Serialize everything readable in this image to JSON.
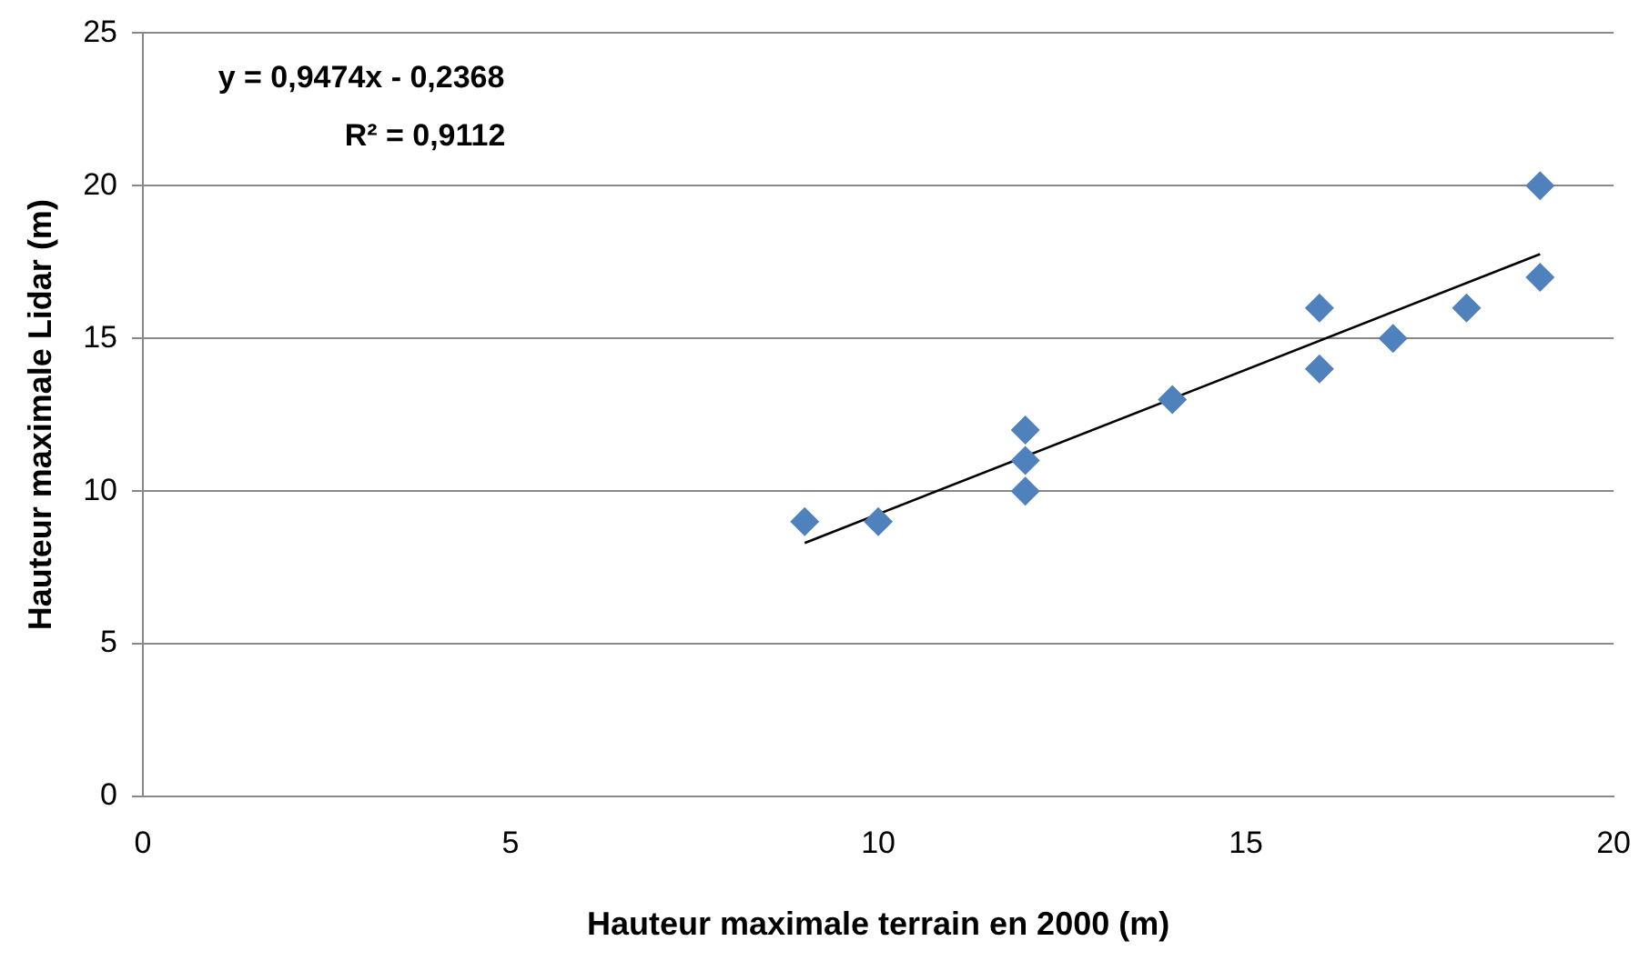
{
  "chart_data": {
    "type": "scatter",
    "xlabel": "Hauteur maximale terrain en 2000 (m)",
    "ylabel": "Hauteur maximale Lidar (m)",
    "xlim": [
      0,
      20
    ],
    "xticks": [
      0,
      5,
      10,
      15,
      20
    ],
    "ylim": [
      0,
      25
    ],
    "yticks": [
      0,
      5,
      10,
      15,
      20,
      25
    ],
    "grid": "y",
    "legend": false,
    "annotations": [
      "y = 0,9474x - 0,2368",
      "R² = 0,9112"
    ],
    "series": [
      {
        "type": "scatter",
        "color": "#4f81bd",
        "marker": "diamond",
        "x": [
          9,
          10,
          12,
          12,
          12,
          14,
          16,
          16,
          17,
          18,
          19,
          19
        ],
        "values": [
          9,
          9,
          12,
          11,
          10,
          13,
          16,
          14,
          15,
          16,
          20,
          17
        ]
      },
      {
        "type": "line",
        "color": "#000000",
        "marker": "none",
        "line_style": "solid",
        "x": [
          9,
          19
        ],
        "values": [
          8.3,
          17.76
        ]
      }
    ]
  }
}
